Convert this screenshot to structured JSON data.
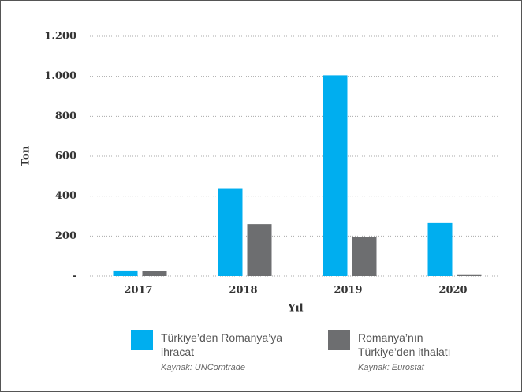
{
  "chart_data": {
    "type": "bar",
    "categories": [
      "2017",
      "2018",
      "2019",
      "2020"
    ],
    "series": [
      {
        "name": "Türkiye’den Romanya’ya ihracat",
        "source": "Kaynak: UNComtrade",
        "color": "#00aeef",
        "values": [
          28,
          440,
          1005,
          265
        ]
      },
      {
        "name": "Romanya’nın Türkiye’den ithalatı",
        "source": "Kaynak: Eurostat",
        "color": "#6d6e70",
        "values": [
          25,
          260,
          195,
          5
        ]
      }
    ],
    "xlabel": "Yıl",
    "ylabel": "Ton",
    "ylim": [
      0,
      1200
    ],
    "yticks": [
      {
        "value": 0,
        "label": "-"
      },
      200,
      400,
      600,
      800,
      {
        "value": 1000,
        "label": "1.000"
      },
      {
        "value": 1200,
        "label": "1.200"
      }
    ],
    "grid": true
  }
}
